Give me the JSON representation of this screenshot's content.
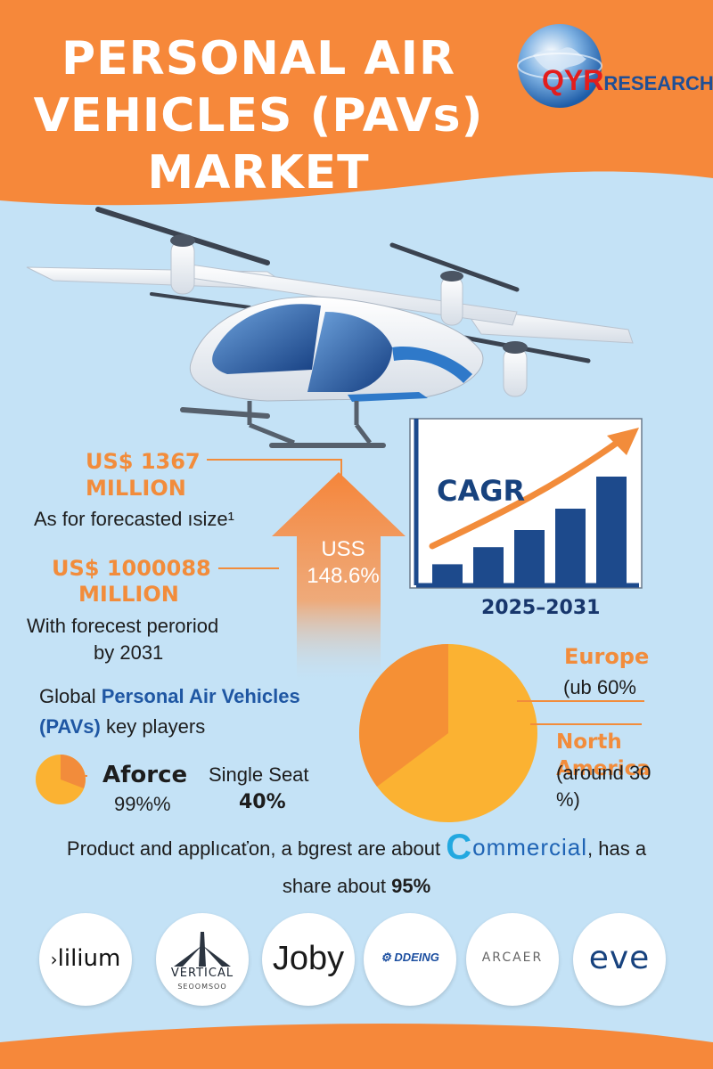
{
  "header": {
    "title_lines": [
      "PERSONAL AIR",
      "VEHICLES (PAVs)",
      "MARKET"
    ],
    "logo": {
      "text_qyr": "QYR",
      "text_research": "RESEARCH"
    }
  },
  "stats": {
    "value_2024": "US$ 1367",
    "value_2024_unit": "MILLION",
    "value_2024_desc": "As for forecasted ısize¹",
    "value_2031": "US$ 1000088",
    "value_2031_unit": "MILLION",
    "value_2031_desc_1": "With forecest peroriod",
    "value_2031_desc_2": "by 2031"
  },
  "arrow": {
    "label_1": "USS",
    "label_2": "148.6%"
  },
  "cagr": {
    "title": "CAGR",
    "period": "2025–2031",
    "bars": [
      0.18,
      0.34,
      0.5,
      0.7,
      1.0
    ]
  },
  "regions": {
    "europe_name": "Europe",
    "europe_share": "(ub 60%",
    "na_name": "North America",
    "na_share_1": "(around 30",
    "na_share_2": "%)"
  },
  "players": {
    "line1_pre": "Global ",
    "line1_hl": "Personal Air Vehicles",
    "line2_hl": "(PAVs)",
    "line2_post": " key players"
  },
  "segment": {
    "aforce_name": "Aforce",
    "aforce_share": "99%%",
    "seat_label": "Single Seat",
    "seat_share": "40%"
  },
  "product": {
    "pre": "Product and applıcaťon, a bgrest are about ",
    "commercial_c": "C",
    "commercial_rest": "ommercial",
    "post": ", has a",
    "line2_pre": "share about ",
    "line2_value": "95%"
  },
  "logos": {
    "lilium": "lilium",
    "vertical_1": "VERTICAL",
    "vertical_2": "SEOOMSOO",
    "joby": "Joby",
    "boeing": "DDEING",
    "archer": "ARCAER",
    "eve": "eve"
  },
  "colors": {
    "orange": "#f28c3b",
    "sky": "#c4e2f6",
    "navy": "#17427e",
    "bar": "#1d4a8c",
    "pie_yellow": "#fbb232",
    "pie_orange": "#f59035"
  }
}
